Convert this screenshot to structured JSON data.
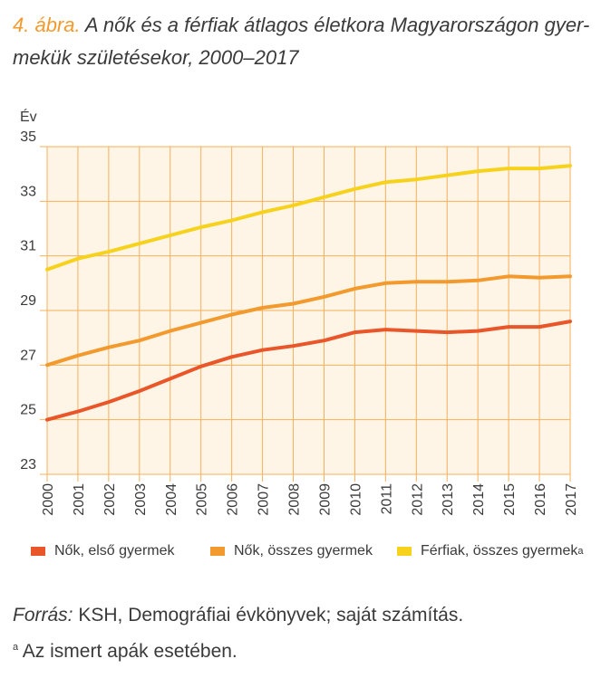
{
  "title": {
    "number": "4. ábra.",
    "text": "A nők és a férfiak átlagos életkora Magyarországon gyer-mekük születésekor, 2000–2017"
  },
  "chart_data": {
    "type": "line",
    "ylabel": "Év",
    "xlabel": "",
    "ylim": [
      23,
      35
    ],
    "yticks": [
      23,
      25,
      27,
      29,
      31,
      33,
      35
    ],
    "x": [
      "2000",
      "2001",
      "2002",
      "2003",
      "2004",
      "2005",
      "2006",
      "2007",
      "2008",
      "2009",
      "2010",
      "2011",
      "2012",
      "2013",
      "2014",
      "2015",
      "2016",
      "2017"
    ],
    "grid": true,
    "legend_position": "bottom",
    "series": [
      {
        "name": "Nők, első gyermek",
        "color": "#e8562a",
        "values": [
          25.0,
          25.3,
          25.65,
          26.05,
          26.5,
          26.95,
          27.3,
          27.55,
          27.7,
          27.9,
          28.2,
          28.3,
          28.25,
          28.2,
          28.25,
          28.4,
          28.4,
          28.6
        ]
      },
      {
        "name": "Nők, összes gyermek",
        "color": "#f29a2e",
        "values": [
          27.0,
          27.35,
          27.65,
          27.9,
          28.25,
          28.55,
          28.85,
          29.1,
          29.25,
          29.5,
          29.8,
          30.0,
          30.05,
          30.05,
          30.1,
          30.25,
          30.2,
          30.25
        ]
      },
      {
        "name": "Férfiak, összes gyermek",
        "sup": "a",
        "color": "#f7d21c",
        "values": [
          30.5,
          30.9,
          31.15,
          31.45,
          31.75,
          32.05,
          32.3,
          32.6,
          32.85,
          33.15,
          33.45,
          33.7,
          33.8,
          33.95,
          34.1,
          34.2,
          34.2,
          34.3
        ]
      }
    ]
  },
  "source": {
    "label": "Forrás:",
    "text": " KSH, Demográfiai évkönyvek; saját számítás."
  },
  "note": {
    "sup": "a",
    "text": " Az ismert apák esetében."
  }
}
